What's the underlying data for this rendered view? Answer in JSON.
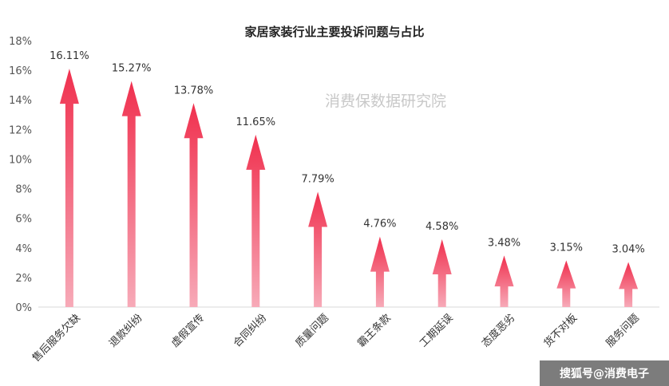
{
  "chart_data": {
    "type": "bar",
    "title": "家居家装行业主要投诉问题与占比",
    "categories": [
      "售后服务欠缺",
      "退款纠纷",
      "虚假宣传",
      "合同纠纷",
      "质量问题",
      "霸王条款",
      "工期延误",
      "态度恶劣",
      "货不对板",
      "服务问题"
    ],
    "values": [
      16.11,
      15.27,
      13.78,
      11.65,
      7.79,
      4.76,
      4.58,
      3.48,
      3.15,
      3.04
    ],
    "value_labels": [
      "16.11%",
      "15.27%",
      "13.78%",
      "11.65%",
      "7.79%",
      "4.76%",
      "4.58%",
      "3.48%",
      "3.15%",
      "3.04%"
    ],
    "yticks": [
      "0%",
      "2%",
      "4%",
      "6%",
      "8%",
      "10%",
      "12%",
      "14%",
      "16%",
      "18%"
    ],
    "ylim": [
      0,
      18
    ],
    "grid": false,
    "colors": {
      "arrow_top": "#f0304e",
      "arrow_bottom": "#f7aab8",
      "axis": "#d9d9d9"
    }
  },
  "watermark": "消费保数据研究院",
  "footer": {
    "text": "搜狐号@消费电子"
  }
}
